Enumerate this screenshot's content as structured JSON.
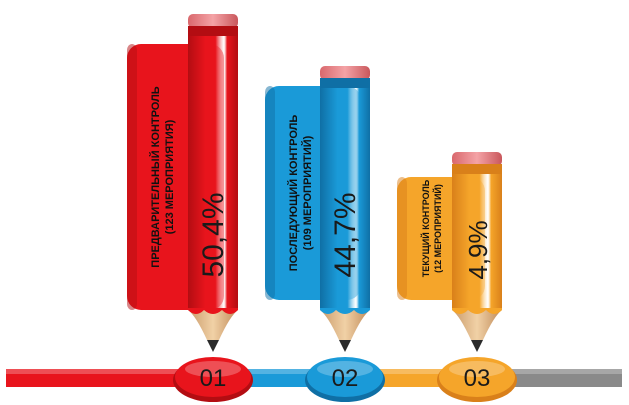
{
  "chart_data": {
    "type": "bar",
    "title": "",
    "xlabel": "",
    "ylabel": "",
    "unit": "%",
    "categories": [
      "01",
      "02",
      "03"
    ],
    "values": [
      50.4,
      44.7,
      4.9
    ],
    "value_labels": [
      "50,4%",
      "44,7%",
      "4,9%"
    ],
    "descriptions": [
      [
        "ПРЕДВАРИТЕЛЬНЫЙ КОНТРОЛЬ",
        "(123 МЕРОПРИЯТИЯ)"
      ],
      [
        "ПОСЛЕДУЮЩИЙ КОНТРОЛЬ",
        "(109 МЕРОПРИЯТИЙ)"
      ],
      [
        "ТЕКУЩИЙ КОНТРОЛЬ",
        "(12 МЕРОПРИЯТИЙ)"
      ]
    ],
    "colors": [
      "#e8141c",
      "#1a9ad8",
      "#f5a52a"
    ],
    "dark_colors": [
      "#b30d12",
      "#0f6fa5",
      "#d9801a"
    ],
    "track_end_color": "#8a8a8a"
  }
}
